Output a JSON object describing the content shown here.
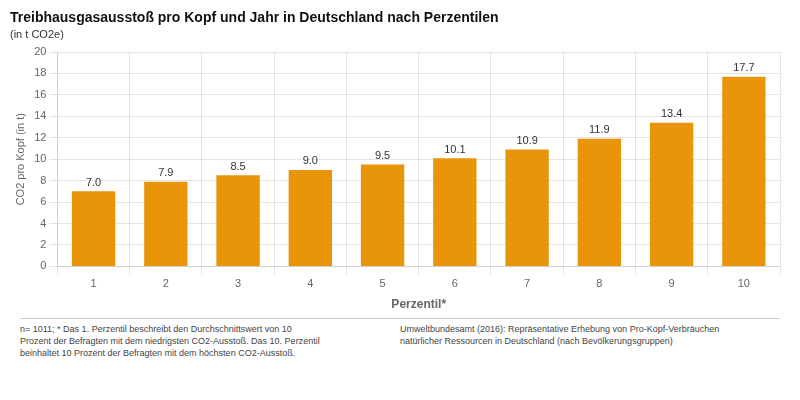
{
  "chart_data": {
    "type": "bar",
    "title": "Treibhausgasausstoß pro Kopf und Jahr in Deutschland nach Perzentilen",
    "subtitle": "(in t CO2e)",
    "xlabel": "Perzentil*",
    "ylabel": "CO2 pro Kopf (in t)",
    "categories": [
      1,
      2,
      3,
      4,
      5,
      6,
      7,
      8,
      9,
      10
    ],
    "values": [
      7.0,
      7.9,
      8.5,
      9.0,
      9.5,
      10.1,
      10.9,
      11.9,
      13.4,
      17.7
    ],
    "value_labels": [
      "7.0",
      "7.9",
      "8.5",
      "9.0",
      "9.5",
      "10.1",
      "10.9",
      "11.9",
      "13.4",
      "17.7"
    ],
    "data_labels": true,
    "color": "#E8950A",
    "ylim": [
      0,
      20
    ],
    "yticks": [
      0,
      2,
      4,
      6,
      8,
      10,
      12,
      14,
      16,
      18,
      20
    ],
    "grid": true,
    "annotations": [
      "n= 1011; * Das 1. Perzentil beschreibt den Durchschnittswert von 10\nProzent der Befragten mit dem niedrigsten CO2-Ausstoß. Das 10. Perzentil\nbeinhaltet 10 Prozent der Befragten mit dem höchsten CO2-Ausstoß.",
      "Umweltbundesamt (2016): Repräsentative Erhebung von Pro-Kopf-Verbräuchen\nnatürlicher Ressourcen in Deutschland (nach Bevölkerungsgruppen)"
    ]
  }
}
